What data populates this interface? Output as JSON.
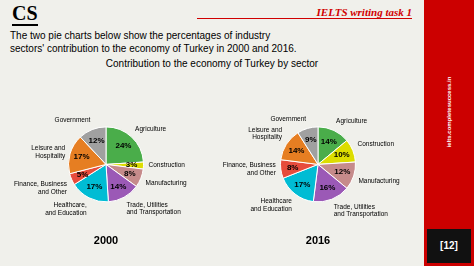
{
  "title": "Contribution to the economy of Turkey by sector",
  "annotations": [
    "CS",
    "IELTS writing task 1",
    "The two pie charts below show the percentages of industry\nsectors' contribution to the economy of Turkey in 2000 and 2016.",
    "ielts.completesuccess.in",
    "[12]"
  ],
  "chart_data": [
    {
      "type": "pie",
      "title": "2000",
      "categories": [
        "Agriculture",
        "Construction",
        "Manufacturing",
        "Trade, Utilities\nand Transportation",
        "Healthcare,\nand Education",
        "Finance, Business\nand Other",
        "Leisure and\nHospitality",
        "Government"
      ],
      "values": [
        24,
        3,
        8,
        14,
        17,
        5,
        17,
        12
      ],
      "value_labels": [
        "24%",
        "3%",
        "8%",
        "14%",
        "17%",
        "5%",
        "17%",
        "12%"
      ],
      "colors": [
        "#4aad4a",
        "#dddd00",
        "#c68b8b",
        "#9b59b6",
        "#00bcd4",
        "#e74c3c",
        "#e67e22",
        "#a0a0a0"
      ],
      "data_labels": true
    },
    {
      "type": "pie",
      "title": "2016",
      "categories": [
        "Agriculture",
        "Construction",
        "Manufacturing",
        "Trade, Utilities\nand Transportation",
        "Healthcare\nand Education",
        "Finance, Business\nand Other",
        "Leisure and\nHospitality",
        "Government"
      ],
      "values": [
        14,
        10,
        12,
        16,
        17,
        8,
        14,
        9
      ],
      "value_labels": [
        "14%",
        "10%",
        "12%",
        "16%",
        "17%",
        "8%",
        "14%",
        "9%"
      ],
      "colors": [
        "#4aad4a",
        "#dddd00",
        "#c68b8b",
        "#9b59b6",
        "#00bcd4",
        "#e74c3c",
        "#e67e22",
        "#a0a0a0"
      ],
      "data_labels": true
    }
  ]
}
